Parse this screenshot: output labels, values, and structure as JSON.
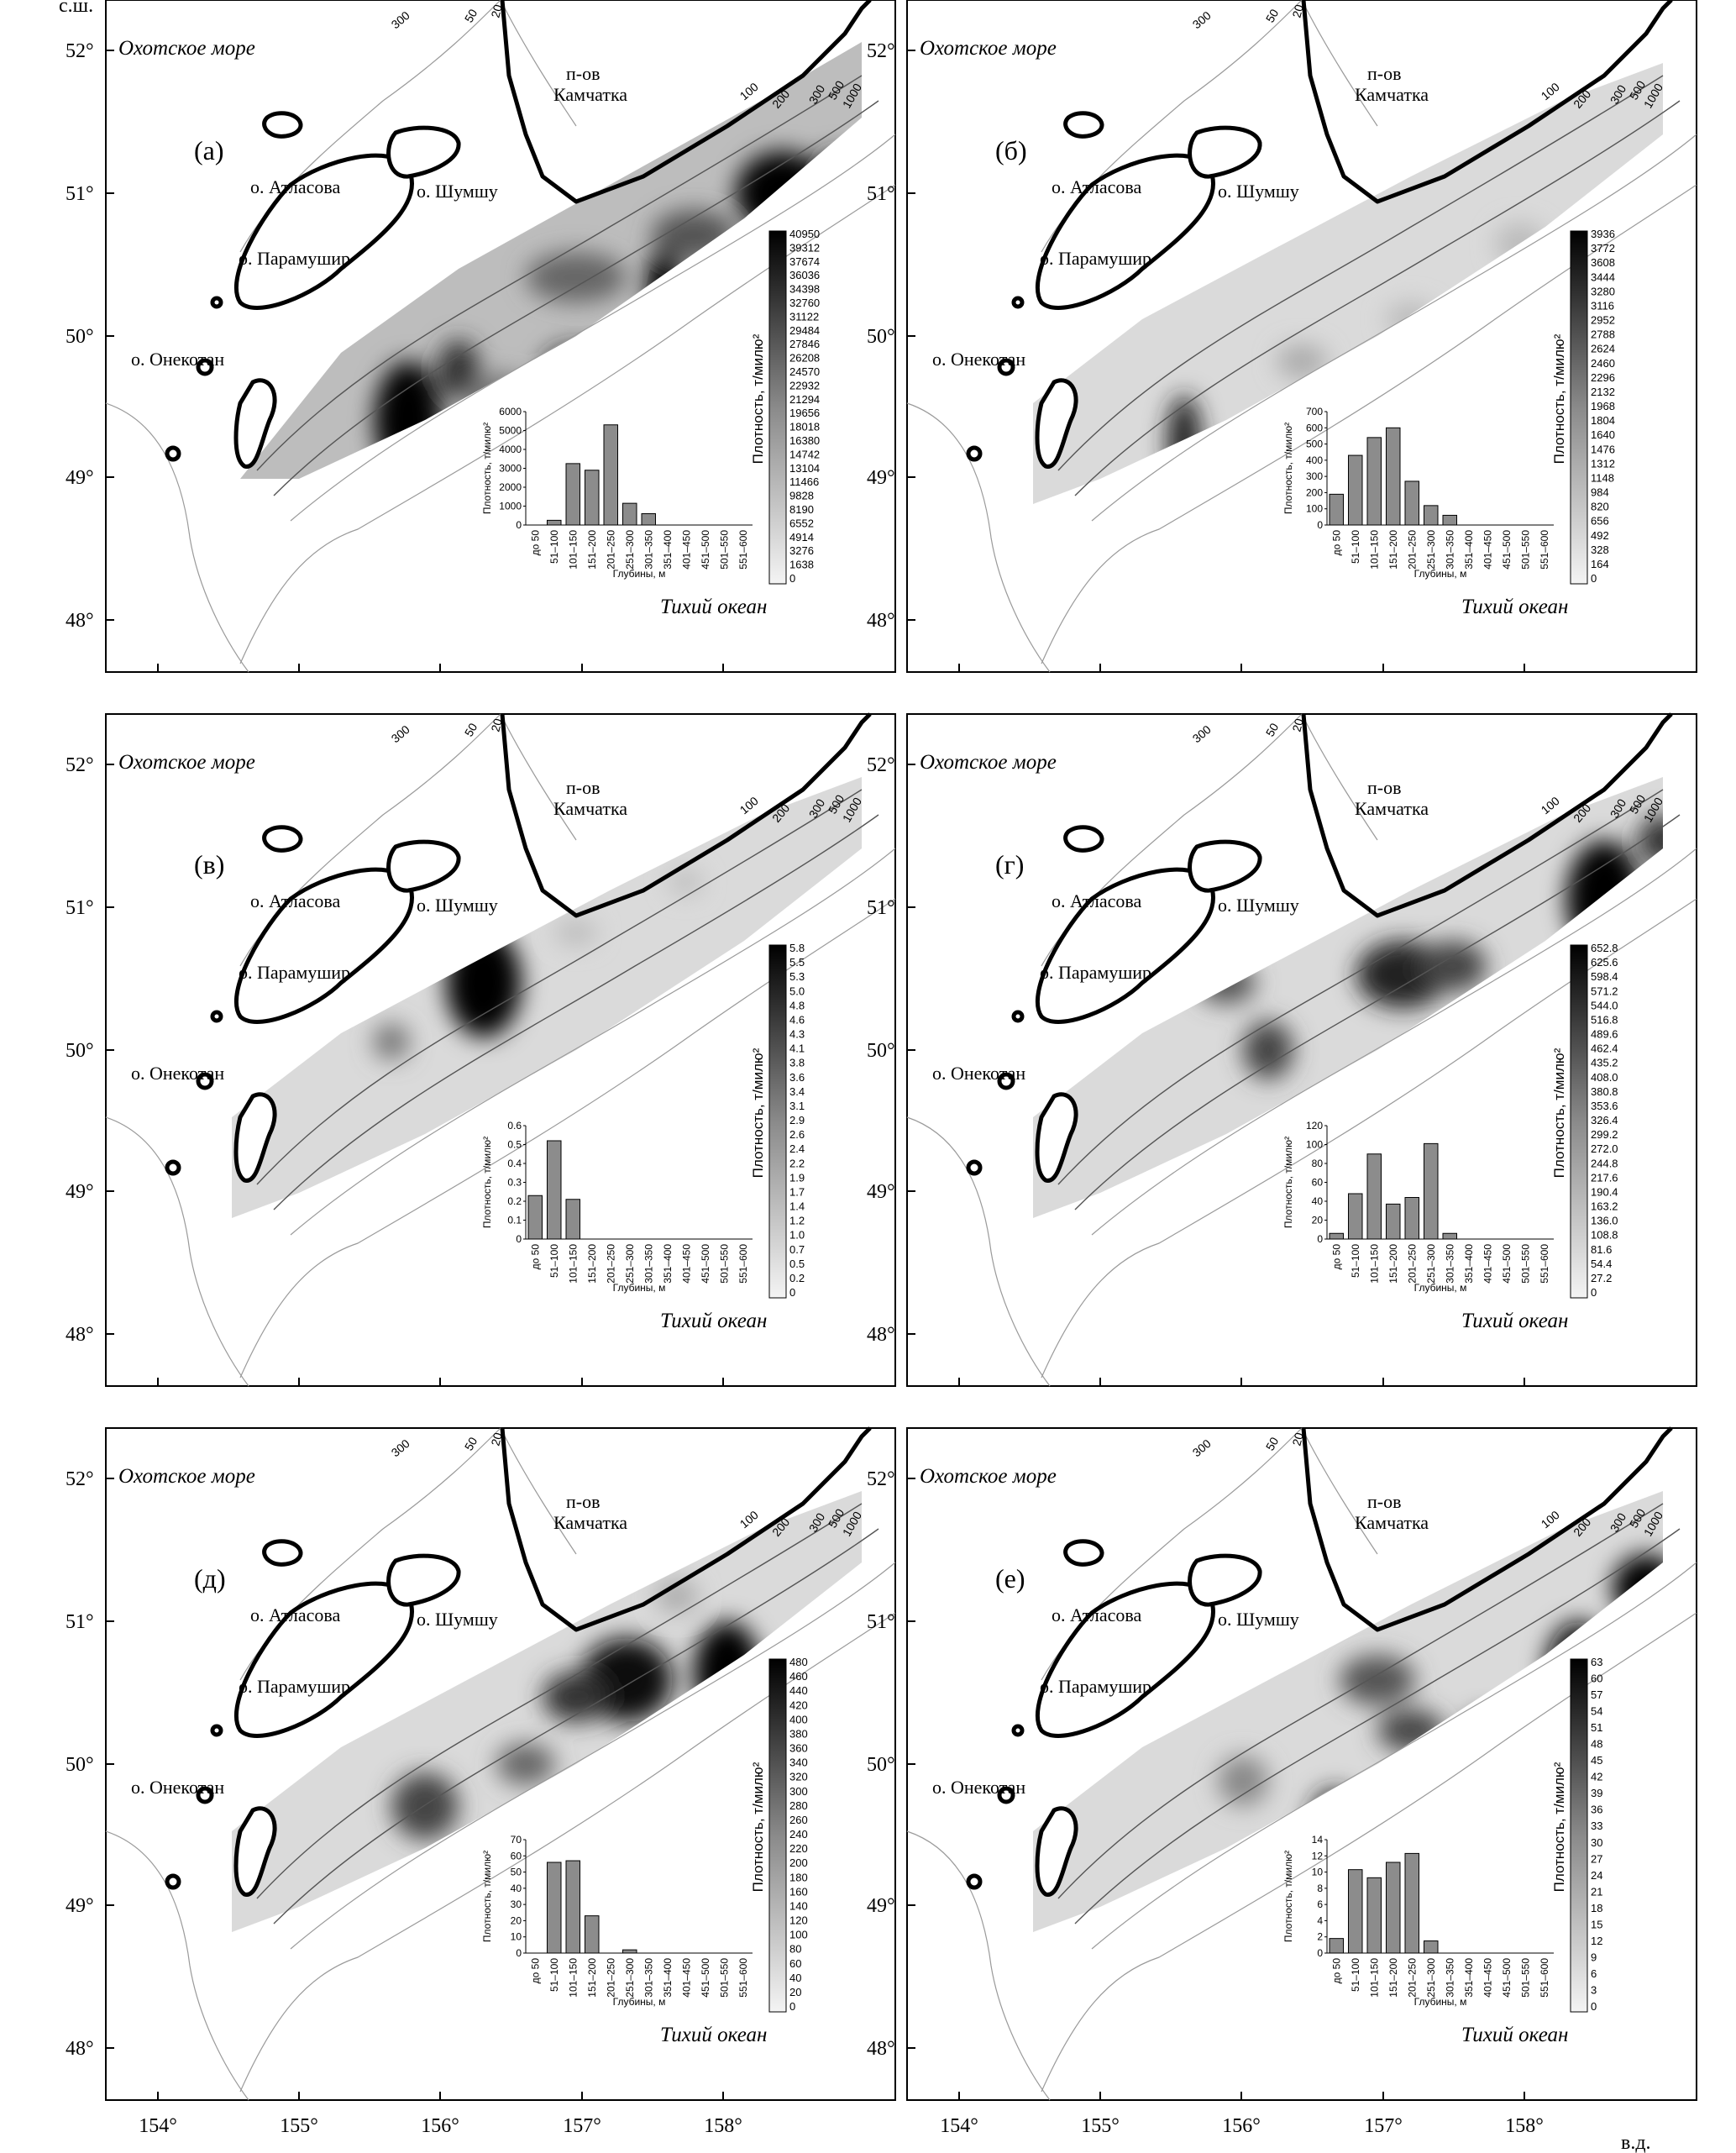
{
  "axis_labels": {
    "north": "с.ш.",
    "east": "в.д."
  },
  "lat_ticks": [
    "52°",
    "51°",
    "50°",
    "49°",
    "48°"
  ],
  "lon_ticks": [
    "154°",
    "155°",
    "156°",
    "157°",
    "158°"
  ],
  "place_names": {
    "sea_okhotsk": "Охотское море",
    "pacific": "Тихий океан",
    "kamchatka_line1": "п-ов",
    "kamchatka_line2": "Камчатка",
    "atlasova": "о. Атласова",
    "shumshu": "о. Шумшу",
    "paramushir": "о. Парамушир",
    "onekotan": "о. Онекотан"
  },
  "isobath_labels": [
    "300",
    "50",
    "20",
    "100",
    "200",
    "300",
    "500",
    "1000"
  ],
  "colorbar_title": "Плотность, т/милю²",
  "histogram_ylabel": "Плотность, т/милю²",
  "histogram_xlabel": "Глубины, м",
  "depth_categories": [
    "до 50",
    "51–100",
    "101–150",
    "151–200",
    "201–250",
    "251–300",
    "301–350",
    "351–400",
    "401–450",
    "451–500",
    "501–550",
    "551–600"
  ],
  "chart_data": [
    {
      "type": "bar",
      "panel": "(а)",
      "categories": [
        "до 50",
        "51–100",
        "101–150",
        "151–200",
        "201–250",
        "251–300",
        "301–350",
        "351–400",
        "401–450",
        "451–500",
        "501–550",
        "551–600"
      ],
      "values": [
        0,
        250,
        3250,
        2900,
        5300,
        1150,
        600,
        0,
        0,
        0,
        0,
        0
      ],
      "ylim": [
        0,
        6000
      ],
      "yticks": [
        "0",
        "1000",
        "2000",
        "3000",
        "4000",
        "5000",
        "6000"
      ],
      "colorbar_ticks": [
        "40950",
        "39312",
        "37674",
        "36036",
        "34398",
        "32760",
        "31122",
        "29484",
        "27846",
        "26208",
        "24570",
        "22932",
        "21294",
        "19656",
        "18018",
        "16380",
        "14742",
        "13104",
        "11466",
        "9828",
        "8190",
        "6552",
        "4914",
        "3276",
        "1638",
        "0"
      ]
    },
    {
      "type": "bar",
      "panel": "(б)",
      "categories": [
        "до 50",
        "51–100",
        "101–150",
        "151–200",
        "201–250",
        "251–300",
        "301–350",
        "351–400",
        "401–450",
        "451–500",
        "501–550",
        "551–600"
      ],
      "values": [
        190,
        430,
        540,
        600,
        270,
        120,
        60,
        0,
        0,
        0,
        0,
        0
      ],
      "ylim": [
        0,
        700
      ],
      "yticks": [
        "0",
        "100",
        "200",
        "300",
        "400",
        "500",
        "600",
        "700"
      ],
      "colorbar_ticks": [
        "3936",
        "3772",
        "3608",
        "3444",
        "3280",
        "3116",
        "2952",
        "2788",
        "2624",
        "2460",
        "2296",
        "2132",
        "1968",
        "1804",
        "1640",
        "1476",
        "1312",
        "1148",
        "984",
        "820",
        "656",
        "492",
        "328",
        "164",
        "0"
      ]
    },
    {
      "type": "bar",
      "panel": "(в)",
      "categories": [
        "до 50",
        "51–100",
        "101–150",
        "151–200",
        "201–250",
        "251–300",
        "301–350",
        "351–400",
        "401–450",
        "451–500",
        "501–550",
        "551–600"
      ],
      "values": [
        0.23,
        0.52,
        0.21,
        0,
        0,
        0,
        0,
        0,
        0,
        0,
        0,
        0
      ],
      "ylim": [
        0,
        0.6
      ],
      "yticks": [
        "0",
        "0.1",
        "0.2",
        "0.3",
        "0.4",
        "0.5",
        "0.6"
      ],
      "colorbar_ticks": [
        "5.8",
        "5.5",
        "5.3",
        "5.0",
        "4.8",
        "4.6",
        "4.3",
        "4.1",
        "3.8",
        "3.6",
        "3.4",
        "3.1",
        "2.9",
        "2.6",
        "2.4",
        "2.2",
        "1.9",
        "1.7",
        "1.4",
        "1.2",
        "1.0",
        "0.7",
        "0.5",
        "0.2",
        "0"
      ]
    },
    {
      "type": "bar",
      "panel": "(г)",
      "categories": [
        "до 50",
        "51–100",
        "101–150",
        "151–200",
        "201–250",
        "251–300",
        "301–350",
        "351–400",
        "401–450",
        "451–500",
        "501–550",
        "551–600"
      ],
      "values": [
        6,
        48,
        90,
        37,
        44,
        101,
        6,
        0,
        0,
        0,
        0,
        0
      ],
      "ylim": [
        0,
        120
      ],
      "yticks": [
        "0",
        "20",
        "40",
        "60",
        "80",
        "100",
        "120"
      ],
      "colorbar_ticks": [
        "652.8",
        "625.6",
        "598.4",
        "571.2",
        "544.0",
        "516.8",
        "489.6",
        "462.4",
        "435.2",
        "408.0",
        "380.8",
        "353.6",
        "326.4",
        "299.2",
        "272.0",
        "244.8",
        "217.6",
        "190.4",
        "163.2",
        "136.0",
        "108.8",
        "81.6",
        "54.4",
        "27.2",
        "0"
      ]
    },
    {
      "type": "bar",
      "panel": "(д)",
      "categories": [
        "до 50",
        "51–100",
        "101–150",
        "151–200",
        "201–250",
        "251–300",
        "301–350",
        "351–400",
        "401–450",
        "451–500",
        "501–550",
        "551–600"
      ],
      "values": [
        0,
        56,
        57,
        23,
        0,
        2,
        0,
        0,
        0,
        0,
        0,
        0
      ],
      "ylim": [
        0,
        70
      ],
      "yticks": [
        "0",
        "10",
        "20",
        "30",
        "40",
        "50",
        "60",
        "70"
      ],
      "colorbar_ticks": [
        "480",
        "460",
        "440",
        "420",
        "400",
        "380",
        "360",
        "340",
        "320",
        "300",
        "280",
        "260",
        "240",
        "220",
        "200",
        "180",
        "160",
        "140",
        "120",
        "100",
        "80",
        "60",
        "40",
        "20",
        "0"
      ]
    },
    {
      "type": "bar",
      "panel": "(е)",
      "categories": [
        "до 50",
        "51–100",
        "101–150",
        "151–200",
        "201–250",
        "251–300",
        "301–350",
        "351–400",
        "401–450",
        "451–500",
        "501–550",
        "551–600"
      ],
      "values": [
        1.8,
        10.3,
        9.3,
        11.2,
        12.3,
        1.5,
        0,
        0,
        0,
        0,
        0,
        0
      ],
      "ylim": [
        0,
        14
      ],
      "yticks": [
        "0",
        "2",
        "4",
        "6",
        "8",
        "10",
        "12",
        "14"
      ],
      "colorbar_ticks": [
        "63",
        "60",
        "57",
        "54",
        "51",
        "48",
        "45",
        "42",
        "39",
        "36",
        "33",
        "30",
        "27",
        "24",
        "21",
        "18",
        "15",
        "12",
        "9",
        "6",
        "3",
        "0"
      ]
    }
  ]
}
